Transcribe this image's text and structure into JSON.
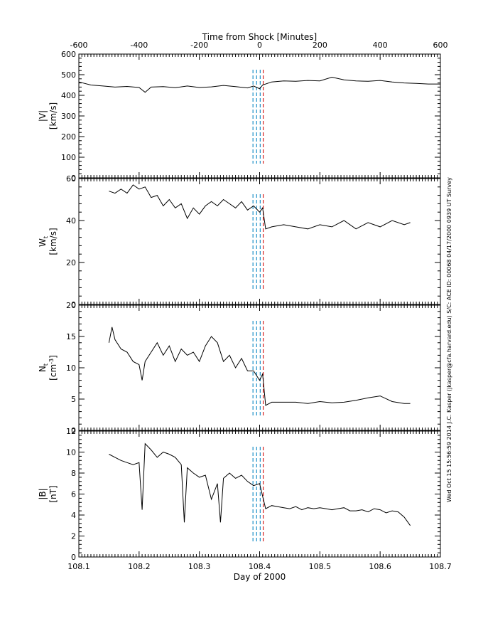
{
  "chart_data": {
    "type": "line",
    "top_axis": {
      "label": "Time from Shock [Minutes]",
      "range": [
        -600,
        600
      ],
      "ticks": [
        "-600",
        "-400",
        "-200",
        "0",
        "200",
        "400",
        "600"
      ],
      "tick_values": [
        -600,
        -400,
        -200,
        0,
        200,
        400,
        600
      ]
    },
    "bottom_axis": {
      "label": "Day of 2000",
      "range": [
        108.1,
        108.7
      ],
      "ticks": [
        "108.1",
        "108.2",
        "108.3",
        "108.4",
        "108.5",
        "108.6",
        "108.7"
      ],
      "tick_values": [
        108.1,
        108.2,
        108.3,
        108.4,
        108.5,
        108.6,
        108.7
      ]
    },
    "markers": {
      "blue_dashed_x": [
        108.389,
        108.395,
        108.401
      ],
      "red_dashed_x": [
        108.406
      ],
      "blue_color": "#1e90c8",
      "red_color": "#d42020"
    },
    "panels": [
      {
        "ylabel_line1": "|V|",
        "ylabel_line2": "[km/s]",
        "ylim": [
          0,
          600
        ],
        "y_ticks": [
          "0",
          "100",
          "200",
          "300",
          "400",
          "500",
          "600"
        ],
        "y_tick_values": [
          0,
          100,
          200,
          300,
          400,
          500,
          600
        ],
        "x": [
          108.1,
          108.12,
          108.14,
          108.16,
          108.18,
          108.2,
          108.21,
          108.22,
          108.24,
          108.26,
          108.28,
          108.3,
          108.32,
          108.34,
          108.36,
          108.38,
          108.39,
          108.4,
          108.405,
          108.42,
          108.44,
          108.46,
          108.48,
          108.5,
          108.52,
          108.54,
          108.56,
          108.58,
          108.6,
          108.62,
          108.64,
          108.66,
          108.68,
          108.7
        ],
        "y": [
          465,
          450,
          445,
          440,
          443,
          438,
          415,
          440,
          442,
          437,
          445,
          438,
          441,
          448,
          442,
          436,
          445,
          432,
          450,
          465,
          470,
          468,
          472,
          470,
          488,
          475,
          470,
          468,
          472,
          465,
          460,
          458,
          455,
          455
        ]
      },
      {
        "ylabel_line1": "W_t",
        "ylabel_line2": "[km/s]",
        "ylim": [
          0,
          60
        ],
        "y_ticks": [
          "0",
          "20",
          "40",
          "60"
        ],
        "y_tick_values": [
          0,
          20,
          40,
          60
        ],
        "x": [
          108.15,
          108.16,
          108.17,
          108.18,
          108.19,
          108.2,
          108.21,
          108.22,
          108.23,
          108.24,
          108.25,
          108.26,
          108.27,
          108.28,
          108.29,
          108.3,
          108.31,
          108.32,
          108.33,
          108.34,
          108.35,
          108.36,
          108.37,
          108.38,
          108.39,
          108.4,
          108.405,
          108.41,
          108.42,
          108.44,
          108.46,
          108.48,
          108.5,
          108.52,
          108.54,
          108.56,
          108.58,
          108.6,
          108.62,
          108.64,
          108.65
        ],
        "y": [
          54,
          53,
          55,
          53,
          57,
          55,
          56,
          51,
          52,
          47,
          50,
          46,
          48,
          41,
          46,
          43,
          47,
          49,
          47,
          50,
          48,
          46,
          49,
          45,
          47,
          44,
          46,
          36,
          37,
          38,
          37,
          36,
          38,
          37,
          40,
          36,
          39,
          37,
          40,
          38,
          39
        ]
      },
      {
        "ylabel_line1": "N_t",
        "ylabel_line2": "[cm^-3]",
        "ylim": [
          0,
          20
        ],
        "y_ticks": [
          "0",
          "5",
          "10",
          "15",
          "20"
        ],
        "y_tick_values": [
          0,
          5,
          10,
          15,
          20
        ],
        "x": [
          108.15,
          108.155,
          108.16,
          108.17,
          108.18,
          108.19,
          108.2,
          108.205,
          108.21,
          108.22,
          108.23,
          108.24,
          108.25,
          108.26,
          108.27,
          108.28,
          108.29,
          108.3,
          108.31,
          108.32,
          108.33,
          108.34,
          108.35,
          108.36,
          108.37,
          108.38,
          108.39,
          108.4,
          108.405,
          108.41,
          108.42,
          108.44,
          108.46,
          108.48,
          108.5,
          108.52,
          108.54,
          108.56,
          108.58,
          108.6,
          108.62,
          108.64,
          108.65
        ],
        "y": [
          14,
          16.5,
          14.5,
          13,
          12.5,
          11,
          10.5,
          8,
          11,
          12.5,
          14,
          12,
          13.5,
          11,
          13,
          12,
          12.5,
          11,
          13.5,
          15,
          14,
          11,
          12,
          10,
          11.5,
          9.5,
          9.5,
          8,
          9,
          4,
          4.5,
          4.5,
          4.5,
          4.3,
          4.6,
          4.4,
          4.5,
          4.8,
          5.2,
          5.5,
          4.6,
          4.3,
          4.3
        ]
      },
      {
        "ylabel_line1": "|B|",
        "ylabel_line2": "[nT]",
        "ylim": [
          0,
          12
        ],
        "y_ticks": [
          "0",
          "2",
          "4",
          "6",
          "8",
          "10",
          "12"
        ],
        "y_tick_values": [
          0,
          2,
          4,
          6,
          8,
          10,
          12
        ],
        "x": [
          108.15,
          108.16,
          108.17,
          108.18,
          108.19,
          108.2,
          108.205,
          108.21,
          108.215,
          108.22,
          108.23,
          108.24,
          108.25,
          108.26,
          108.27,
          108.275,
          108.28,
          108.29,
          108.3,
          108.31,
          108.32,
          108.33,
          108.335,
          108.34,
          108.35,
          108.36,
          108.37,
          108.38,
          108.39,
          108.4,
          108.405,
          108.41,
          108.42,
          108.43,
          108.44,
          108.45,
          108.46,
          108.47,
          108.48,
          108.49,
          108.5,
          108.51,
          108.52,
          108.53,
          108.54,
          108.55,
          108.56,
          108.57,
          108.58,
          108.59,
          108.6,
          108.61,
          108.62,
          108.63,
          108.64,
          108.65
        ],
        "y": [
          9.8,
          9.5,
          9.2,
          9.0,
          8.8,
          9.0,
          4.5,
          10.8,
          10.5,
          10.2,
          9.5,
          10.0,
          9.8,
          9.5,
          8.8,
          3.3,
          8.5,
          8.0,
          7.6,
          7.8,
          5.5,
          7.0,
          3.3,
          7.5,
          8.0,
          7.5,
          7.8,
          7.2,
          6.8,
          7.0,
          5.8,
          4.6,
          4.9,
          4.8,
          4.7,
          4.6,
          4.8,
          4.5,
          4.7,
          4.6,
          4.7,
          4.6,
          4.5,
          4.6,
          4.7,
          4.4,
          4.4,
          4.5,
          4.3,
          4.6,
          4.5,
          4.2,
          4.4,
          4.3,
          3.8,
          3.0
        ]
      }
    ]
  },
  "side_text": "Wed Oct 15 15:56:59 2014   J.C. Kasper (jkasper@cfa.harvard.edu)   S/C: ACE  ID: 00068  04/17/2000  0939 UT Survey"
}
